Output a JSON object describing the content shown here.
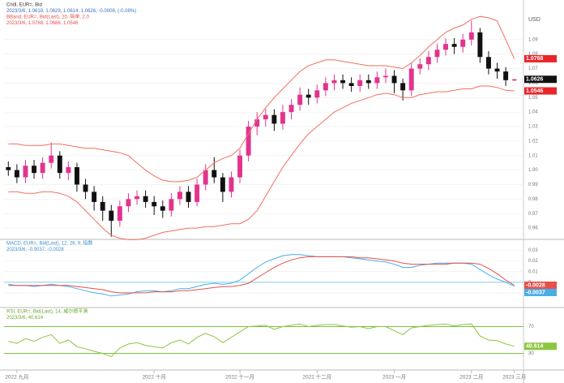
{
  "chart_data": [
    {
      "type": "candlestick",
      "legend": [
        "Cndl, EUR=, Bid",
        "2023/3/6, 1.0618, 1.0629, 1.0614, 1.0626, -0.0008, (-0.08%)",
        "BBand, EUR=, Bid(Last), 20, 简单, 2.0",
        "2023/3/6, 1.0768, 1.0686, 1.0546"
      ],
      "y_axis_label": "USD",
      "categories": [
        null,
        "2022 九月",
        null,
        null,
        null,
        null,
        null,
        null,
        null,
        null,
        null,
        null,
        null,
        null,
        null,
        null,
        null,
        "2022 十月",
        null,
        null,
        null,
        null,
        null,
        null,
        null,
        null,
        null,
        "2022 十一月",
        null,
        null,
        null,
        null,
        null,
        null,
        null,
        null,
        "2022 十二月",
        null,
        null,
        null,
        null,
        null,
        null,
        null,
        null,
        "2023 一月",
        null,
        null,
        null,
        null,
        null,
        null,
        null,
        null,
        "2023 二月",
        null,
        null,
        null,
        null,
        "2023 三月"
      ],
      "open": [
        1.002,
        1.0,
        0.995,
        1.003,
        0.998,
        1.005,
        1.01,
        0.998,
        1.002,
        0.99,
        0.985,
        0.978,
        0.972,
        0.965,
        0.975,
        0.98,
        0.982,
        0.978,
        0.975,
        0.972,
        0.98,
        0.985,
        0.978,
        0.99,
        1.0,
        0.995,
        0.985,
        0.995,
        1.01,
        1.03,
        1.035,
        1.038,
        1.032,
        1.04,
        1.045,
        1.052,
        1.05,
        1.055,
        1.06,
        1.062,
        1.06,
        1.058,
        1.062,
        1.06,
        1.064,
        1.065,
        1.06,
        1.055,
        1.07,
        1.073,
        1.078,
        1.083,
        1.087,
        1.085,
        1.09,
        1.095,
        1.078,
        1.07,
        1.068,
        1.0618
      ],
      "high": [
        1.006,
        1.004,
        1.007,
        1.007,
        1.009,
        1.019,
        1.013,
        1.006,
        1.005,
        0.994,
        0.989,
        0.982,
        0.976,
        0.979,
        0.984,
        0.986,
        0.986,
        0.982,
        0.979,
        0.984,
        0.989,
        0.989,
        0.994,
        1.004,
        1.009,
        0.998,
        0.999,
        1.014,
        1.034,
        1.04,
        1.042,
        1.042,
        1.045,
        1.049,
        1.057,
        1.056,
        1.059,
        1.064,
        1.066,
        1.066,
        1.064,
        1.066,
        1.066,
        1.068,
        1.07,
        1.069,
        1.063,
        1.074,
        1.077,
        1.082,
        1.087,
        1.091,
        1.091,
        1.094,
        1.103,
        1.098,
        1.082,
        1.074,
        1.071,
        1.0629
      ],
      "low": [
        0.996,
        0.991,
        0.991,
        0.994,
        0.994,
        1.001,
        0.994,
        0.993,
        0.985,
        0.98,
        0.972,
        0.965,
        0.954,
        0.961,
        0.971,
        0.976,
        0.974,
        0.969,
        0.967,
        0.968,
        0.976,
        0.974,
        0.975,
        0.986,
        0.991,
        0.978,
        0.981,
        0.991,
        1.006,
        1.024,
        1.03,
        1.027,
        1.028,
        1.035,
        1.041,
        1.045,
        1.046,
        1.051,
        1.055,
        1.056,
        1.054,
        1.054,
        1.056,
        1.056,
        1.06,
        1.053,
        1.048,
        1.051,
        1.066,
        1.069,
        1.074,
        1.079,
        1.08,
        1.081,
        1.086,
        1.074,
        1.066,
        1.063,
        1.058,
        1.0614
      ],
      "close": [
        1.0,
        0.995,
        1.003,
        0.998,
        1.005,
        1.01,
        0.998,
        1.002,
        0.99,
        0.985,
        0.978,
        0.972,
        0.965,
        0.975,
        0.98,
        0.982,
        0.978,
        0.975,
        0.972,
        0.98,
        0.985,
        0.978,
        0.99,
        1.0,
        0.995,
        0.985,
        0.995,
        1.01,
        1.03,
        1.035,
        1.038,
        1.032,
        1.04,
        1.045,
        1.052,
        1.05,
        1.055,
        1.06,
        1.062,
        1.06,
        1.058,
        1.062,
        1.06,
        1.064,
        1.065,
        1.06,
        1.055,
        1.07,
        1.073,
        1.078,
        1.083,
        1.087,
        1.085,
        1.09,
        1.095,
        1.078,
        1.07,
        1.068,
        1.062,
        1.0626
      ],
      "upper": [
        1.018,
        1.018,
        1.017,
        1.017,
        1.017,
        1.018,
        1.018,
        1.017,
        1.016,
        1.015,
        1.015,
        1.014,
        1.013,
        1.012,
        1.01,
        1.005,
        1.0,
        0.996,
        0.993,
        0.992,
        0.992,
        0.993,
        0.995,
        1.0,
        1.005,
        1.008,
        1.01,
        1.015,
        1.025,
        1.035,
        1.043,
        1.05,
        1.056,
        1.062,
        1.068,
        1.072,
        1.074,
        1.076,
        1.076,
        1.075,
        1.074,
        1.073,
        1.072,
        1.072,
        1.072,
        1.071,
        1.07,
        1.074,
        1.079,
        1.085,
        1.09,
        1.095,
        1.098,
        1.1,
        1.104,
        1.106,
        1.105,
        1.103,
        1.09,
        1.0768
      ],
      "lower": [
        0.985,
        0.985,
        0.984,
        0.984,
        0.985,
        0.985,
        0.984,
        0.982,
        0.978,
        0.972,
        0.966,
        0.96,
        0.955,
        0.953,
        0.952,
        0.952,
        0.953,
        0.955,
        0.957,
        0.958,
        0.959,
        0.96,
        0.96,
        0.961,
        0.961,
        0.962,
        0.963,
        0.963,
        0.966,
        0.972,
        0.982,
        0.992,
        1.002,
        1.01,
        1.018,
        1.025,
        1.03,
        1.035,
        1.04,
        1.043,
        1.046,
        1.048,
        1.05,
        1.052,
        1.053,
        1.052,
        1.05,
        1.05,
        1.052,
        1.053,
        1.054,
        1.054,
        1.055,
        1.056,
        1.056,
        1.058,
        1.058,
        1.057,
        1.055,
        1.0546
      ],
      "up_color": "#e2348f",
      "down_color": "#111111",
      "band_color": "#f0705e",
      "ylim": [
        0.955,
        1.105
      ],
      "yticks": [
        0.96,
        0.97,
        0.98,
        0.99,
        {
          "value": 1,
          "label": "1.00"
        },
        1.01,
        1.02,
        1.03,
        1.04,
        1.05,
        1.06,
        1.07,
        1.08,
        1.09
      ],
      "grid": true
    },
    {
      "type": "line",
      "legend": [
        "MACD, EUR=, Bid(Last), 12, 26, 9, 指数",
        "2023/3/6, -0.0037, -0.0028"
      ],
      "series": [
        {
          "color": "#4aaee6",
          "values": [
            -0.002,
            -0.003,
            -0.003,
            -0.004,
            -0.003,
            -0.002,
            -0.003,
            -0.004,
            -0.006,
            -0.008,
            -0.01,
            -0.011,
            -0.013,
            -0.012,
            -0.011,
            -0.009,
            -0.008,
            -0.008,
            -0.009,
            -0.008,
            -0.006,
            -0.006,
            -0.004,
            -0.002,
            -0.001,
            -0.002,
            -0.001,
            0.002,
            0.008,
            0.014,
            0.019,
            0.022,
            0.025,
            0.026,
            0.026,
            0.025,
            0.024,
            0.024,
            0.024,
            0.024,
            0.023,
            0.022,
            0.021,
            0.02,
            0.019,
            0.017,
            0.014,
            0.014,
            0.016,
            0.017,
            0.018,
            0.018,
            0.018,
            0.018,
            0.017,
            0.012,
            0.007,
            0.003,
            0.0,
            -0.0037
          ]
        },
        {
          "color": "#e8504a",
          "values": [
            -0.003,
            -0.003,
            -0.003,
            -0.003,
            -0.003,
            -0.003,
            -0.003,
            -0.003,
            -0.004,
            -0.005,
            -0.006,
            -0.007,
            -0.009,
            -0.01,
            -0.01,
            -0.01,
            -0.01,
            -0.009,
            -0.009,
            -0.009,
            -0.008,
            -0.008,
            -0.007,
            -0.006,
            -0.005,
            -0.004,
            -0.004,
            -0.003,
            -0.001,
            0.004,
            0.009,
            0.014,
            0.018,
            0.021,
            0.023,
            0.024,
            0.024,
            0.024,
            0.024,
            0.024,
            0.024,
            0.023,
            0.023,
            0.022,
            0.021,
            0.02,
            0.018,
            0.017,
            0.017,
            0.017,
            0.017,
            0.017,
            0.018,
            0.018,
            0.018,
            0.017,
            0.013,
            0.008,
            0.002,
            -0.0028
          ]
        }
      ],
      "zero_color": "#8fd0f0",
      "ylim": [
        -0.02,
        0.035
      ],
      "yticks": [
        -0.01,
        0,
        0.01,
        0.02,
        0.03
      ],
      "grid": true
    },
    {
      "type": "line",
      "legend": [
        "RSI, EUR=, Bid(Last), 14, 威尔德平滑",
        "2023/3/6, 40.614"
      ],
      "series": [
        {
          "color": "#8cc63f",
          "values": [
            48,
            45,
            52,
            48,
            54,
            58,
            45,
            50,
            40,
            37,
            33,
            30,
            25,
            38,
            44,
            46,
            42,
            40,
            38,
            46,
            50,
            44,
            54,
            60,
            55,
            46,
            54,
            62,
            70,
            71,
            72,
            66,
            70,
            72,
            74,
            70,
            72,
            73,
            73,
            71,
            69,
            70,
            67,
            70,
            70,
            64,
            58,
            68,
            70,
            72,
            73,
            74,
            71,
            73,
            74,
            56,
            50,
            49,
            44,
            40.614
          ]
        }
      ],
      "level_color": "#7cc242",
      "ylim": [
        10,
        90
      ],
      "yticks": [
        30,
        70
      ],
      "grid": true
    }
  ]
}
